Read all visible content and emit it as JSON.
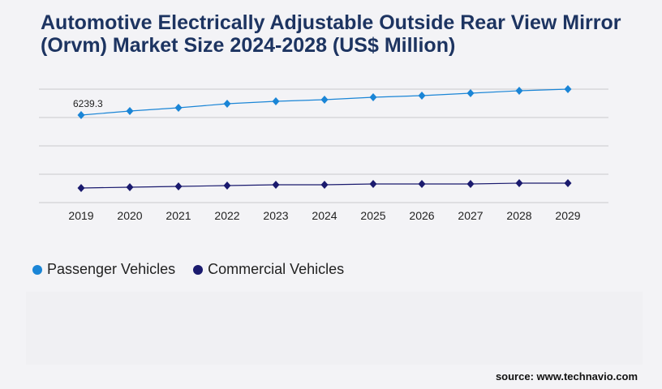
{
  "title": "Automotive Electrically Adjustable Outside Rear View Mirror (Orvm) Market Size 2024-2028 (US$ Million)",
  "source": "source: www.technavio.com",
  "chart_data": {
    "type": "line",
    "title": "Automotive Electrically Adjustable Outside Rear View Mirror (Orvm) Market Size 2024-2028 (US$ Million)",
    "categories": [
      "2019",
      "2020",
      "2021",
      "2022",
      "2023",
      "2024",
      "2025",
      "2026",
      "2027",
      "2028",
      "2029"
    ],
    "series": [
      {
        "name": "Passenger Vehicles",
        "color": "#1a85d6",
        "values": [
          6239.3,
          6528,
          6759,
          7048,
          7221,
          7337,
          7510,
          7626,
          7799,
          7972,
          8088
        ]
      },
      {
        "name": "Commercial Vehicles",
        "color": "#1a1a6e",
        "values": [
          1040,
          1098,
          1155,
          1213,
          1271,
          1271,
          1329,
          1329,
          1329,
          1386,
          1386
        ]
      }
    ],
    "annotations": [
      "6239.3"
    ],
    "ylim": [
      0,
      8088
    ],
    "grid": true,
    "legend": "bottom-left",
    "marker": "diamond"
  }
}
